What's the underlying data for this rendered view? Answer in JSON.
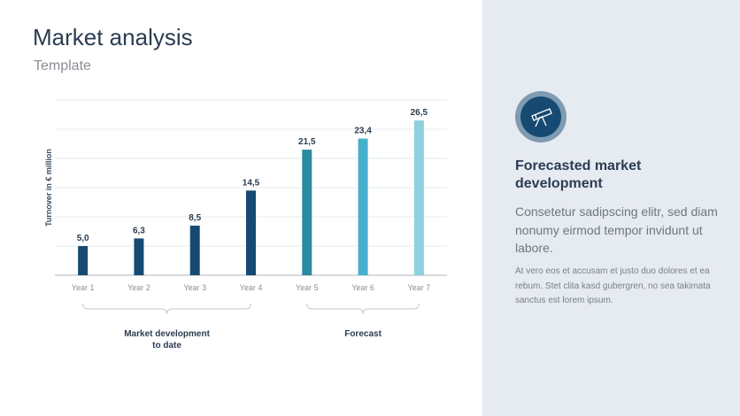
{
  "header": {
    "title": "Market analysis",
    "subtitle": "Template"
  },
  "chart_data": {
    "type": "bar",
    "title": "",
    "xlabel": "",
    "ylabel": "Turnover in € million",
    "categories": [
      "Year 1",
      "Year 2",
      "Year 3",
      "Year 4",
      "Year 5",
      "Year 6",
      "Year 7"
    ],
    "values": [
      5.0,
      6.3,
      8.5,
      14.5,
      21.5,
      23.4,
      26.5
    ],
    "data_labels": [
      "5,0",
      "6,3",
      "8,5",
      "14,5",
      "21,5",
      "23,4",
      "26,5"
    ],
    "colors": [
      "#164a72",
      "#164a72",
      "#164a72",
      "#164a72",
      "#2a8a9e",
      "#46b0cc",
      "#8fd0df"
    ],
    "ylim": [
      0,
      30
    ],
    "grid": true,
    "groups": [
      {
        "label_lines": [
          "Market development",
          "to date"
        ],
        "from": 0,
        "to": 3
      },
      {
        "label_lines": [
          "Forecast"
        ],
        "from": 4,
        "to": 6
      }
    ]
  },
  "panel": {
    "icon": "telescope-icon",
    "heading": "Forecasted market development",
    "lead": "Consetetur sadipscing elitr, sed diam nonumy eirmod tempor invidunt ut labore.",
    "body": "At vero eos et accusam et justo duo dolores et ea rebum. Stet clita kasd gubergren, no sea takimata sanctus est lorem ipsum."
  }
}
